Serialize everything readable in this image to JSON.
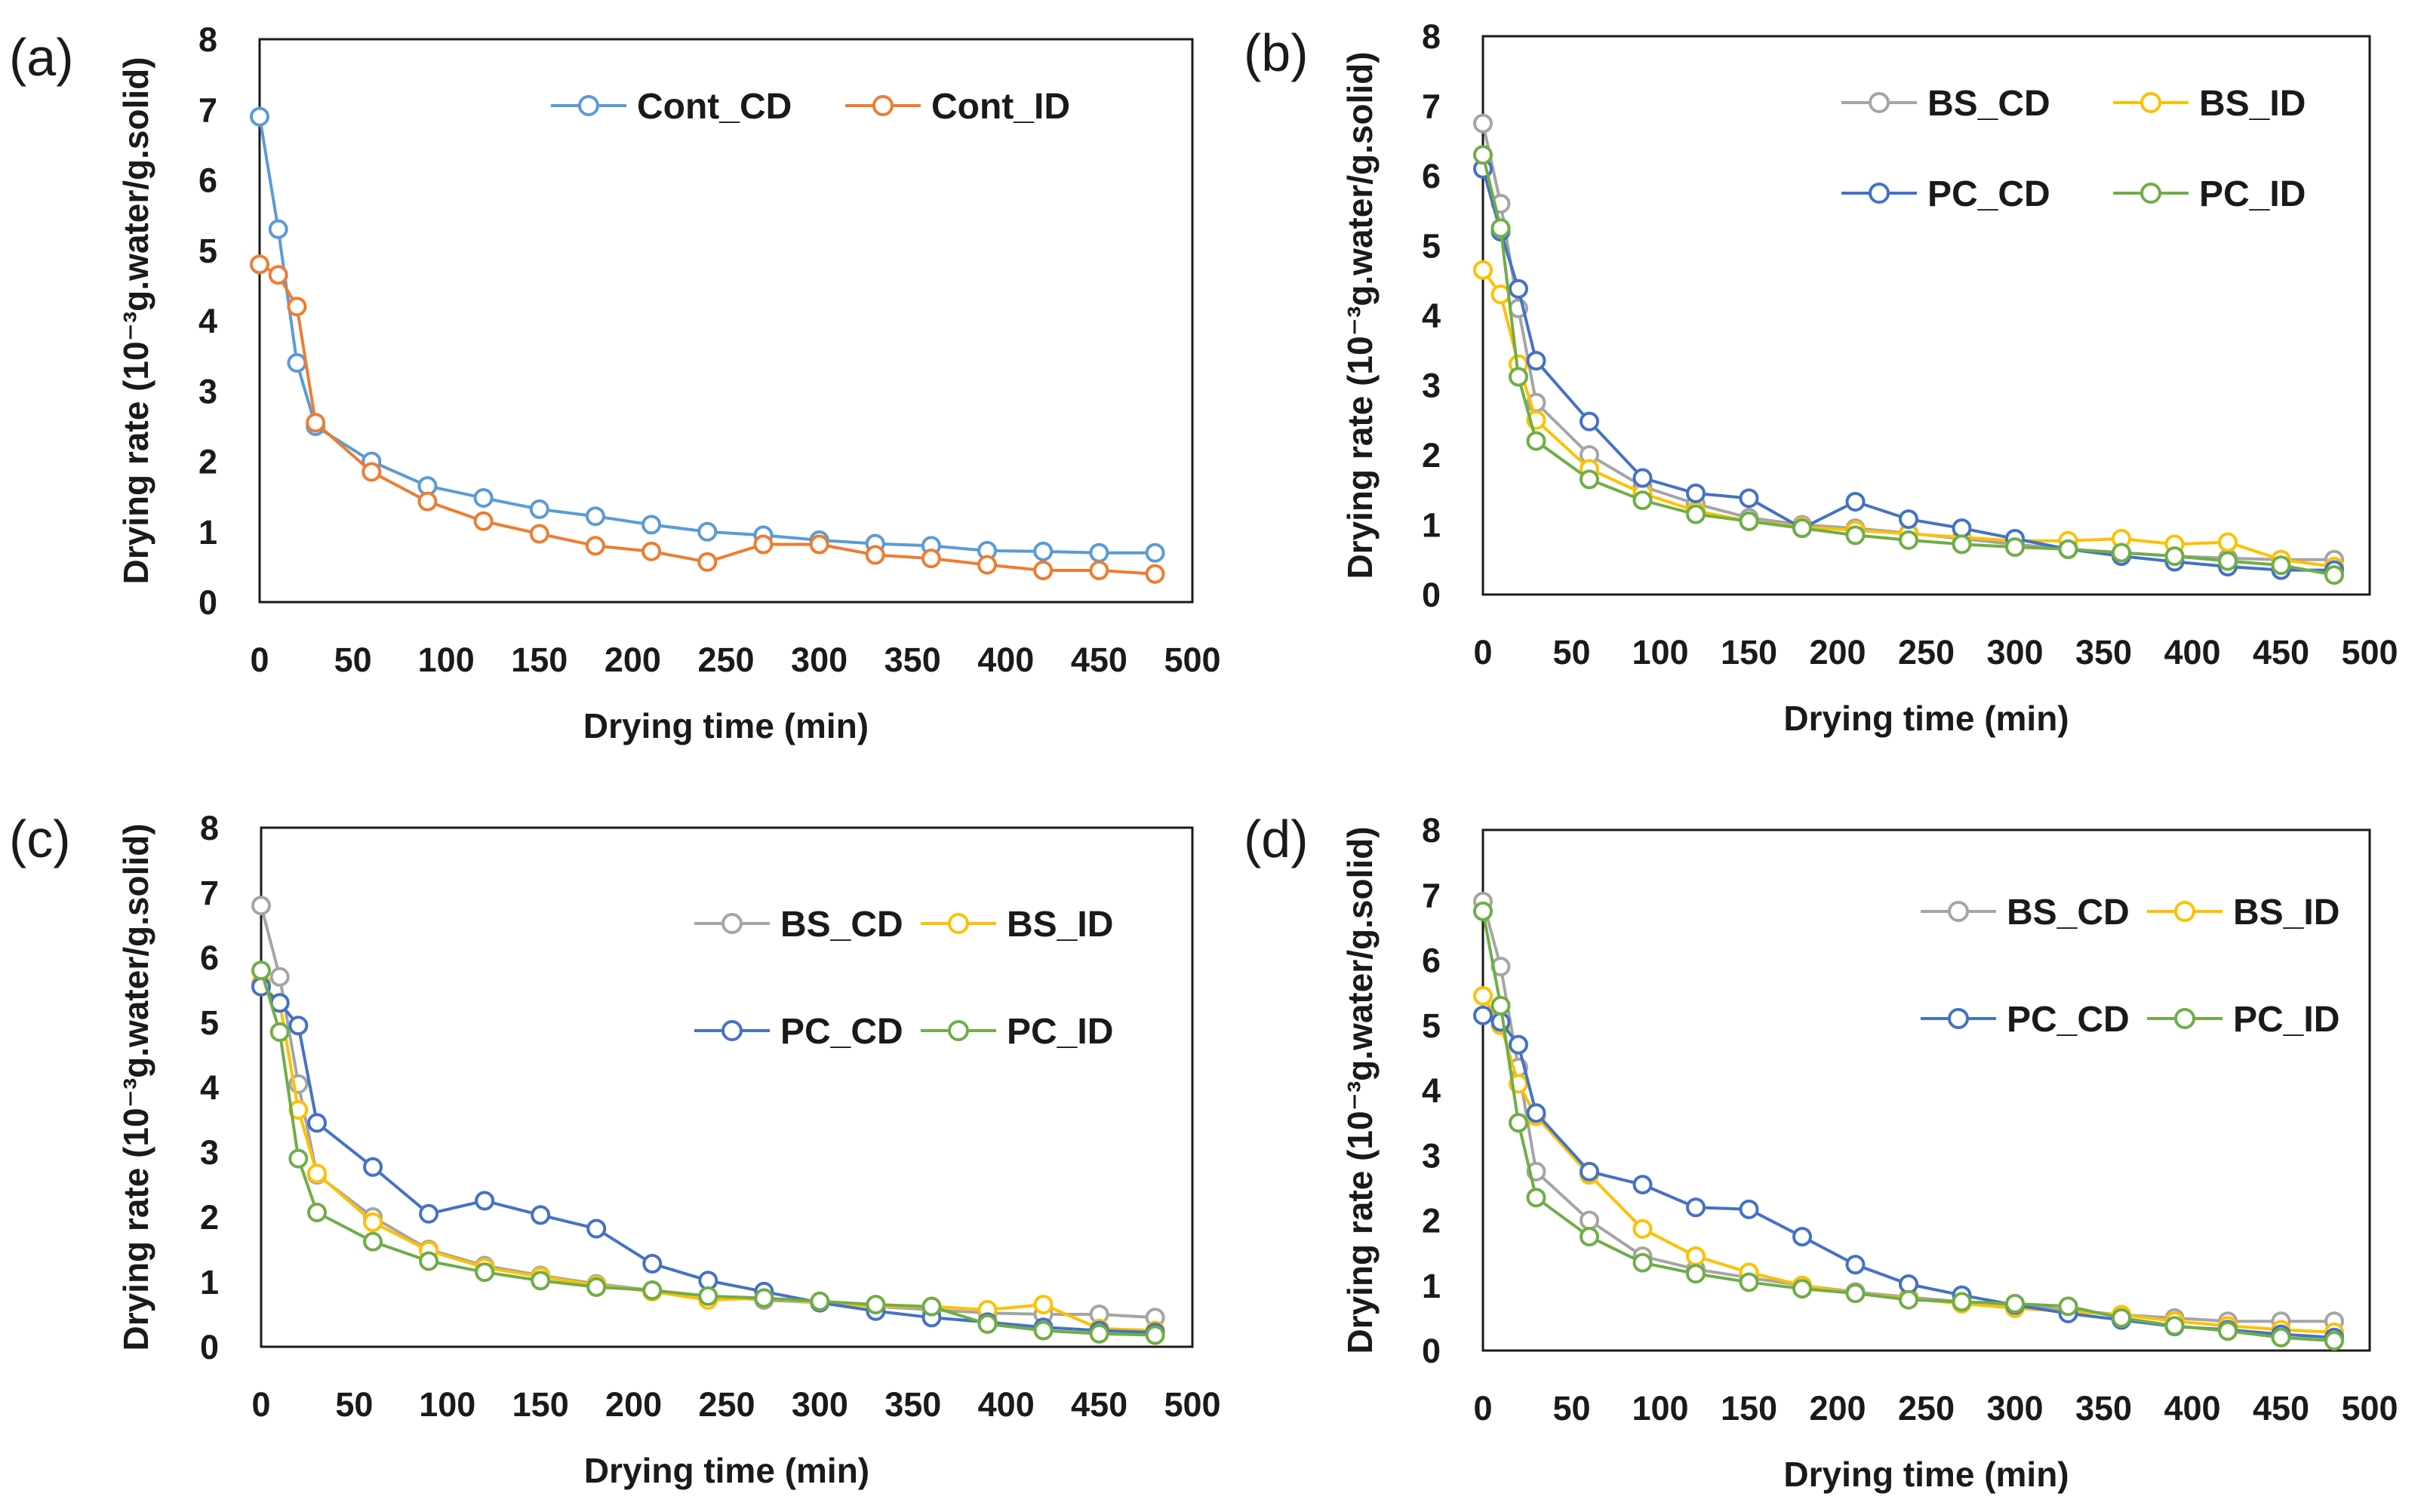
{
  "chart_data": [
    {
      "type": "line",
      "panel_label": "(a)",
      "xlabel": "Drying time (min)",
      "ylabel": "Drying rate (10⁻³g.water/g.solid)",
      "xlim": [
        0,
        500
      ],
      "ylim": [
        0,
        8
      ],
      "x_ticks": [
        "0",
        "50",
        "100",
        "150",
        "200",
        "250",
        "300",
        "350",
        "400",
        "450",
        "500"
      ],
      "y_ticks": [
        "0",
        "1",
        "2",
        "3",
        "4",
        "5",
        "6",
        "7",
        "8"
      ],
      "legend_layout": "one-row",
      "series": [
        {
          "name": "Cont_CD",
          "color": "#5b9bd5",
          "x": [
            0,
            10,
            20,
            30,
            60,
            90,
            120,
            150,
            180,
            210,
            240,
            270,
            300,
            330,
            360,
            390,
            420,
            450,
            480
          ],
          "y": [
            6.9,
            5.3,
            3.4,
            2.5,
            2.0,
            1.65,
            1.48,
            1.32,
            1.22,
            1.1,
            1.0,
            0.95,
            0.88,
            0.83,
            0.8,
            0.73,
            0.72,
            0.7,
            0.7
          ]
        },
        {
          "name": "Cont_ID",
          "color": "#ed7d31",
          "x": [
            0,
            10,
            20,
            30,
            60,
            90,
            120,
            150,
            180,
            210,
            240,
            270,
            300,
            330,
            360,
            390,
            420,
            450,
            480
          ],
          "y": [
            4.8,
            4.65,
            4.2,
            2.55,
            1.85,
            1.43,
            1.15,
            0.97,
            0.8,
            0.72,
            0.57,
            0.82,
            0.82,
            0.67,
            0.62,
            0.53,
            0.45,
            0.45,
            0.4
          ]
        }
      ]
    },
    {
      "type": "line",
      "panel_label": "(b)",
      "xlabel": "Drying time (min)",
      "ylabel": "Drying rate (10⁻³g.water/g.solid)",
      "xlim": [
        0,
        500
      ],
      "ylim": [
        0,
        8
      ],
      "x_ticks": [
        "0",
        "50",
        "100",
        "150",
        "200",
        "250",
        "300",
        "350",
        "400",
        "450",
        "500"
      ],
      "y_ticks": [
        "0",
        "1",
        "2",
        "3",
        "4",
        "5",
        "6",
        "7",
        "8"
      ],
      "legend_layout": "grid",
      "series": [
        {
          "name": "BS_CD",
          "color": "#a5a5a5",
          "x": [
            0,
            10,
            20,
            30,
            60,
            90,
            120,
            150,
            180,
            210,
            240,
            270,
            300,
            330,
            360,
            390,
            420,
            450,
            480
          ],
          "y": [
            6.75,
            5.6,
            4.1,
            2.75,
            2.0,
            1.55,
            1.3,
            1.1,
            1.0,
            0.95,
            0.88,
            0.8,
            0.72,
            0.65,
            0.6,
            0.55,
            0.52,
            0.5,
            0.5
          ]
        },
        {
          "name": "BS_ID",
          "color": "#ffc000",
          "x": [
            0,
            10,
            20,
            30,
            60,
            90,
            120,
            150,
            180,
            210,
            240,
            270,
            300,
            330,
            360,
            390,
            420,
            450,
            480
          ],
          "y": [
            4.65,
            4.3,
            3.3,
            2.5,
            1.8,
            1.45,
            1.2,
            1.05,
            0.97,
            0.92,
            0.87,
            0.82,
            0.77,
            0.77,
            0.8,
            0.72,
            0.75,
            0.5,
            0.4
          ]
        },
        {
          "name": "PC_CD",
          "color": "#4472c4",
          "x": [
            0,
            10,
            20,
            30,
            60,
            90,
            120,
            150,
            180,
            210,
            240,
            270,
            300,
            330,
            360,
            390,
            420,
            450,
            480
          ],
          "y": [
            6.1,
            5.2,
            4.38,
            3.35,
            2.48,
            1.67,
            1.45,
            1.38,
            0.95,
            1.33,
            1.08,
            0.95,
            0.8,
            0.65,
            0.55,
            0.47,
            0.4,
            0.35,
            0.35
          ]
        },
        {
          "name": "PC_ID",
          "color": "#70ad47",
          "x": [
            0,
            10,
            20,
            30,
            60,
            90,
            120,
            150,
            180,
            210,
            240,
            270,
            300,
            330,
            360,
            390,
            420,
            450,
            480
          ],
          "y": [
            6.3,
            5.25,
            3.12,
            2.2,
            1.65,
            1.35,
            1.15,
            1.05,
            0.95,
            0.85,
            0.78,
            0.72,
            0.68,
            0.65,
            0.6,
            0.55,
            0.48,
            0.42,
            0.28
          ]
        }
      ]
    },
    {
      "type": "line",
      "panel_label": "(c)",
      "xlabel": "Drying time (min)",
      "ylabel": "Drying rate (10⁻³g.water/g.solid)",
      "xlim": [
        0,
        500
      ],
      "ylim": [
        0,
        8
      ],
      "x_ticks": [
        "0",
        "50",
        "100",
        "150",
        "200",
        "250",
        "300",
        "350",
        "400",
        "450",
        "500"
      ],
      "y_ticks": [
        "0",
        "1",
        "2",
        "3",
        "4",
        "5",
        "6",
        "7",
        "8"
      ],
      "legend_layout": "pairs",
      "series": [
        {
          "name": "BS_CD",
          "color": "#a5a5a5",
          "x": [
            0,
            10,
            20,
            30,
            60,
            90,
            120,
            150,
            180,
            210,
            240,
            270,
            300,
            330,
            360,
            390,
            420,
            450,
            480
          ],
          "y": [
            6.8,
            5.7,
            4.05,
            2.65,
            2.0,
            1.5,
            1.25,
            1.1,
            0.97,
            0.87,
            0.78,
            0.72,
            0.68,
            0.62,
            0.57,
            0.52,
            0.5,
            0.5,
            0.45
          ]
        },
        {
          "name": "BS_ID",
          "color": "#ffc000",
          "x": [
            0,
            10,
            20,
            30,
            60,
            90,
            120,
            150,
            180,
            210,
            240,
            270,
            300,
            330,
            360,
            390,
            420,
            450,
            480
          ],
          "y": [
            5.6,
            5.3,
            3.65,
            2.67,
            1.92,
            1.48,
            1.22,
            1.08,
            0.95,
            0.85,
            0.72,
            0.75,
            0.68,
            0.62,
            0.62,
            0.57,
            0.65,
            0.28,
            0.25
          ]
        },
        {
          "name": "PC_CD",
          "color": "#4472c4",
          "x": [
            0,
            10,
            20,
            30,
            60,
            90,
            120,
            150,
            180,
            210,
            240,
            270,
            300,
            330,
            360,
            390,
            420,
            450,
            480
          ],
          "y": [
            5.55,
            5.3,
            4.95,
            3.45,
            2.77,
            2.05,
            2.25,
            2.03,
            1.82,
            1.28,
            1.02,
            0.85,
            0.68,
            0.55,
            0.45,
            0.38,
            0.3,
            0.25,
            0.22
          ]
        },
        {
          "name": "PC_ID",
          "color": "#70ad47",
          "x": [
            0,
            10,
            20,
            30,
            60,
            90,
            120,
            150,
            180,
            210,
            240,
            270,
            300,
            330,
            360,
            390,
            420,
            450,
            480
          ],
          "y": [
            5.8,
            4.85,
            2.9,
            2.07,
            1.62,
            1.32,
            1.15,
            1.02,
            0.92,
            0.87,
            0.78,
            0.75,
            0.7,
            0.65,
            0.62,
            0.35,
            0.25,
            0.2,
            0.18
          ]
        }
      ]
    },
    {
      "type": "line",
      "panel_label": "(d)",
      "xlabel": "Drying time (min)",
      "ylabel": "Drying rate (10⁻³g.water/g.solid)",
      "xlim": [
        0,
        500
      ],
      "ylim": [
        0,
        8
      ],
      "x_ticks": [
        "0",
        "50",
        "100",
        "150",
        "200",
        "250",
        "300",
        "350",
        "400",
        "450",
        "500"
      ],
      "y_ticks": [
        "0",
        "1",
        "2",
        "3",
        "4",
        "5",
        "6",
        "7",
        "8"
      ],
      "legend_layout": "pairs",
      "series": [
        {
          "name": "BS_CD",
          "color": "#a5a5a5",
          "x": [
            0,
            10,
            20,
            30,
            60,
            90,
            120,
            150,
            180,
            210,
            240,
            270,
            300,
            330,
            360,
            390,
            420,
            450,
            480
          ],
          "y": [
            6.9,
            5.9,
            4.35,
            2.75,
            2.0,
            1.45,
            1.25,
            1.12,
            1.0,
            0.9,
            0.82,
            0.75,
            0.7,
            0.62,
            0.55,
            0.5,
            0.45,
            0.45,
            0.45
          ]
        },
        {
          "name": "BS_ID",
          "color": "#ffc000",
          "x": [
            0,
            10,
            20,
            30,
            60,
            90,
            120,
            150,
            180,
            210,
            240,
            270,
            300,
            330,
            360,
            390,
            420,
            450,
            480
          ],
          "y": [
            5.45,
            5.0,
            4.1,
            3.6,
            2.7,
            1.87,
            1.45,
            1.2,
            1.0,
            0.88,
            0.8,
            0.72,
            0.65,
            0.6,
            0.55,
            0.45,
            0.38,
            0.32,
            0.28
          ]
        },
        {
          "name": "PC_CD",
          "color": "#4472c4",
          "x": [
            0,
            10,
            20,
            30,
            60,
            90,
            120,
            150,
            180,
            210,
            240,
            270,
            300,
            330,
            360,
            390,
            420,
            450,
            480
          ],
          "y": [
            5.15,
            5.05,
            4.7,
            3.65,
            2.75,
            2.55,
            2.2,
            2.17,
            1.75,
            1.32,
            1.02,
            0.85,
            0.7,
            0.57,
            0.47,
            0.37,
            0.32,
            0.25,
            0.2
          ]
        },
        {
          "name": "PC_ID",
          "color": "#70ad47",
          "x": [
            0,
            10,
            20,
            30,
            60,
            90,
            120,
            150,
            180,
            210,
            240,
            270,
            300,
            330,
            360,
            390,
            420,
            450,
            480
          ],
          "y": [
            6.75,
            5.3,
            3.5,
            2.35,
            1.75,
            1.35,
            1.18,
            1.05,
            0.95,
            0.88,
            0.78,
            0.75,
            0.72,
            0.68,
            0.5,
            0.38,
            0.3,
            0.2,
            0.15
          ]
        }
      ]
    }
  ]
}
